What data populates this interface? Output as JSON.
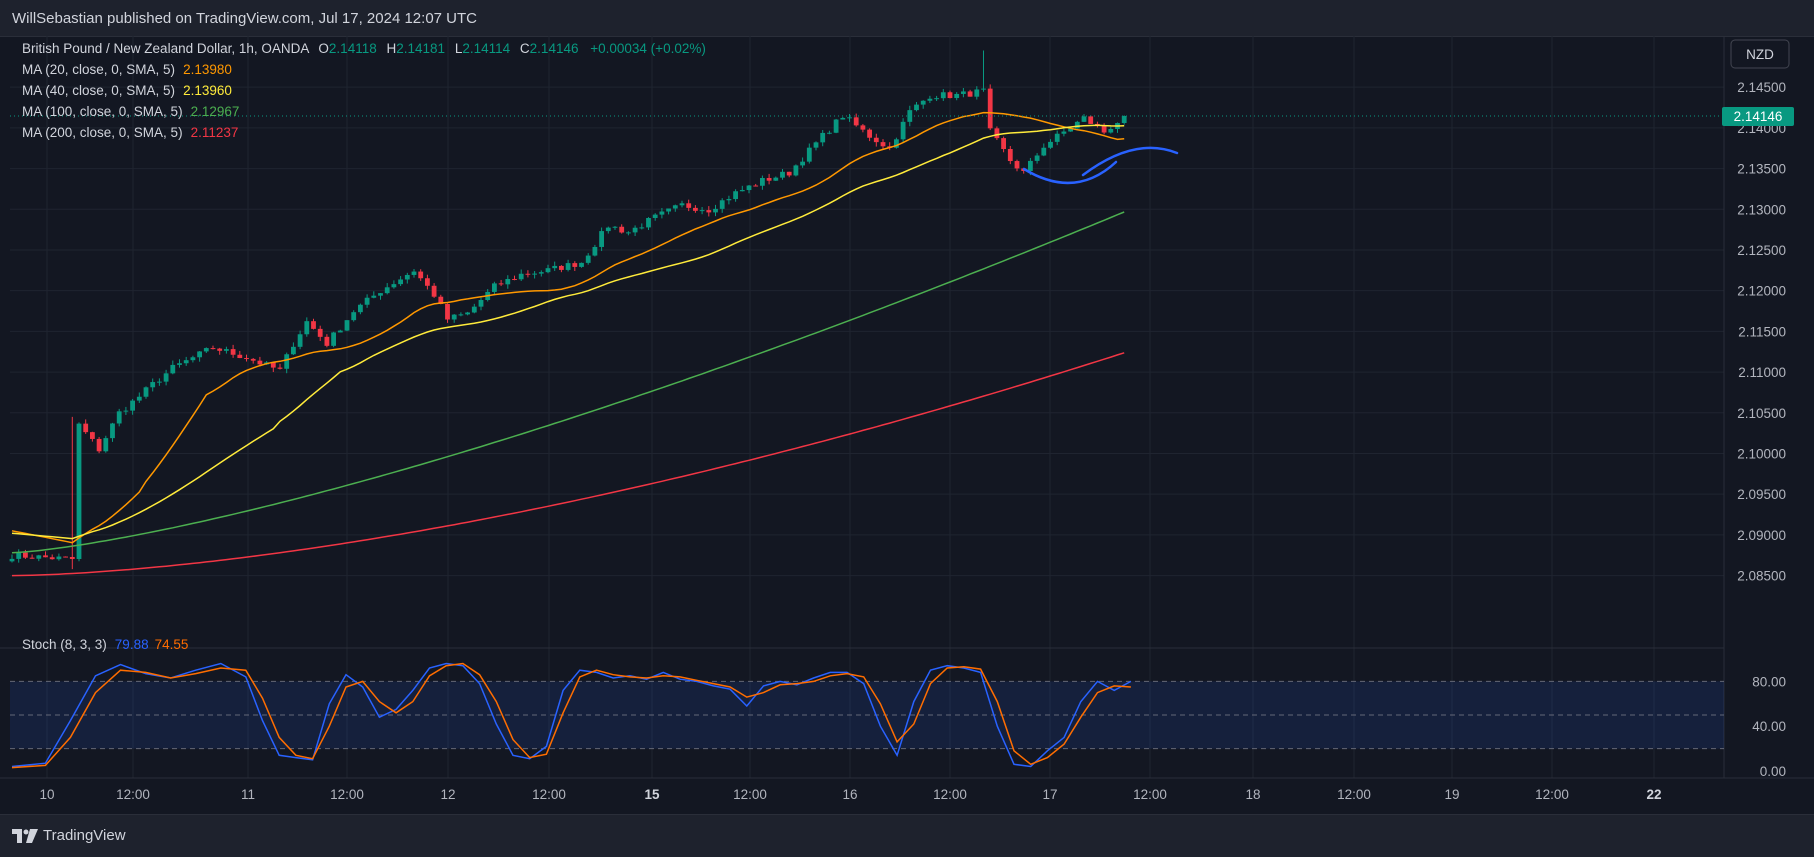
{
  "header": {
    "publisher": "WillSebastian published on TradingView.com, Jul 17, 2024 12:07 UTC"
  },
  "footer": {
    "brand": "TradingView"
  },
  "symbol": {
    "name": "British Pound / New Zealand Dollar, 1h, OANDA",
    "ohlc": [
      {
        "label": "O",
        "value": "2.14118"
      },
      {
        "label": "H",
        "value": "2.14181"
      },
      {
        "label": "L",
        "value": "2.14114"
      },
      {
        "label": "C",
        "value": "2.14146"
      }
    ],
    "change": "+0.00034 (+0.02%)"
  },
  "currency_unit": "NZD",
  "last_price": "2.14146",
  "colors": {
    "up": "#089981",
    "down": "#f23645",
    "ma20": "#ff9800",
    "ma40": "#ffeb3b",
    "ma100": "#4caf50",
    "ma200": "#f23645",
    "stoch_k": "#2962ff",
    "stoch_d": "#ff6d00",
    "annotation": "#2962ff"
  },
  "chart_data": [
    {
      "type": "candlestick",
      "x_ticks": [
        "10",
        "12:00",
        "11",
        "12:00",
        "12",
        "12:00",
        "15",
        "12:00",
        "16",
        "12:00",
        "17",
        "12:00",
        "18",
        "12:00",
        "19",
        "12:00",
        "22"
      ],
      "y_ticks": [
        "2.14500",
        "2.14000",
        "2.13500",
        "2.13000",
        "2.12500",
        "2.12000",
        "2.11500",
        "2.11000",
        "2.10500",
        "2.10000",
        "2.09500",
        "2.09000",
        "2.08500"
      ],
      "ylim": [
        2.0825,
        2.1495
      ],
      "anchors": [
        [
          0,
          2.0875
        ],
        [
          9,
          2.087
        ],
        [
          10,
          2.1035
        ],
        [
          13,
          2.1005
        ],
        [
          16,
          2.105
        ],
        [
          19,
          2.107
        ],
        [
          21,
          2.1085
        ],
        [
          24,
          2.1105
        ],
        [
          30,
          2.113
        ],
        [
          35,
          2.1118
        ],
        [
          38,
          2.1108
        ],
        [
          40,
          2.1102
        ],
        [
          42,
          2.1135
        ],
        [
          44,
          2.1162
        ],
        [
          47,
          2.1135
        ],
        [
          51,
          2.1175
        ],
        [
          55,
          2.12
        ],
        [
          60,
          2.1225
        ],
        [
          63,
          2.1195
        ],
        [
          65,
          2.1165
        ],
        [
          68,
          2.1172
        ],
        [
          72,
          2.1205
        ],
        [
          76,
          2.122
        ],
        [
          80,
          2.1225
        ],
        [
          85,
          2.1235
        ],
        [
          89,
          2.128
        ],
        [
          92,
          2.1272
        ],
        [
          96,
          2.129
        ],
        [
          100,
          2.1305
        ],
        [
          104,
          2.13
        ],
        [
          108,
          2.132
        ],
        [
          112,
          2.1335
        ],
        [
          116,
          2.1345
        ],
        [
          121,
          2.139
        ],
        [
          124,
          2.1415
        ],
        [
          128,
          2.139
        ],
        [
          131,
          2.1375
        ],
        [
          134,
          2.142
        ],
        [
          137,
          2.144
        ],
        [
          141,
          2.144
        ],
        [
          145,
          2.1445
        ],
        [
          146,
          2.1395
        ],
        [
          149,
          2.136
        ],
        [
          151,
          2.1345
        ],
        [
          154,
          2.1378
        ],
        [
          157,
          2.1395
        ],
        [
          160,
          2.1412
        ],
        [
          163,
          2.1395
        ],
        [
          166,
          2.1414
        ]
      ],
      "ma": [
        {
          "name": "MA (20, close, 0, SMA, 5)",
          "value": "2.13980",
          "color": "#ff9800"
        },
        {
          "name": "MA (40, close, 0, SMA, 5)",
          "value": "2.13960",
          "color": "#ffeb3b"
        },
        {
          "name": "MA (100, close, 0, SMA, 5)",
          "value": "2.12967",
          "color": "#4caf50"
        },
        {
          "name": "MA (200, close, 0, SMA, 5)",
          "value": "2.11237",
          "color": "#f23645"
        }
      ]
    },
    {
      "type": "line",
      "name": "Stoch (8, 3, 3)",
      "k_value": "79.88",
      "d_value": "74.55",
      "y_ticks": [
        "80.00",
        "40.00",
        "0.00"
      ],
      "ylim": [
        0,
        100
      ],
      "bands": [
        20,
        50,
        80
      ],
      "k": [
        [
          0,
          4
        ],
        [
          4,
          7
        ],
        [
          7,
          45
        ],
        [
          10,
          85
        ],
        [
          13,
          95
        ],
        [
          16,
          87
        ],
        [
          19,
          83
        ],
        [
          22,
          90
        ],
        [
          25,
          96
        ],
        [
          28,
          84
        ],
        [
          30,
          45
        ],
        [
          32,
          14
        ],
        [
          34,
          12
        ],
        [
          36,
          10
        ],
        [
          38,
          60
        ],
        [
          40,
          86
        ],
        [
          42,
          75
        ],
        [
          44,
          48
        ],
        [
          46,
          55
        ],
        [
          48,
          72
        ],
        [
          50,
          92
        ],
        [
          52,
          96
        ],
        [
          54,
          94
        ],
        [
          56,
          78
        ],
        [
          58,
          42
        ],
        [
          60,
          14
        ],
        [
          62,
          11
        ],
        [
          64,
          22
        ],
        [
          66,
          72
        ],
        [
          68,
          90
        ],
        [
          70,
          88
        ],
        [
          72,
          83
        ],
        [
          74,
          85
        ],
        [
          76,
          82
        ],
        [
          78,
          88
        ],
        [
          80,
          82
        ],
        [
          82,
          80
        ],
        [
          84,
          76
        ],
        [
          86,
          73
        ],
        [
          88,
          58
        ],
        [
          90,
          76
        ],
        [
          92,
          80
        ],
        [
          94,
          77
        ],
        [
          96,
          83
        ],
        [
          98,
          88
        ],
        [
          100,
          88
        ],
        [
          102,
          78
        ],
        [
          104,
          40
        ],
        [
          106,
          14
        ],
        [
          108,
          62
        ],
        [
          110,
          90
        ],
        [
          112,
          94
        ],
        [
          114,
          92
        ],
        [
          116,
          88
        ],
        [
          118,
          40
        ],
        [
          120,
          6
        ],
        [
          122,
          4
        ],
        [
          124,
          18
        ],
        [
          126,
          30
        ],
        [
          128,
          62
        ],
        [
          130,
          80
        ],
        [
          132,
          72
        ],
        [
          134,
          80
        ]
      ],
      "d": [
        [
          0,
          3
        ],
        [
          4,
          5
        ],
        [
          7,
          30
        ],
        [
          10,
          70
        ],
        [
          13,
          90
        ],
        [
          16,
          88
        ],
        [
          19,
          83
        ],
        [
          22,
          87
        ],
        [
          25,
          92
        ],
        [
          28,
          90
        ],
        [
          30,
          65
        ],
        [
          32,
          30
        ],
        [
          34,
          14
        ],
        [
          36,
          11
        ],
        [
          38,
          40
        ],
        [
          40,
          75
        ],
        [
          42,
          80
        ],
        [
          44,
          62
        ],
        [
          46,
          52
        ],
        [
          48,
          62
        ],
        [
          50,
          85
        ],
        [
          52,
          94
        ],
        [
          54,
          96
        ],
        [
          56,
          86
        ],
        [
          58,
          62
        ],
        [
          60,
          28
        ],
        [
          62,
          12
        ],
        [
          64,
          15
        ],
        [
          66,
          52
        ],
        [
          68,
          84
        ],
        [
          70,
          90
        ],
        [
          72,
          86
        ],
        [
          74,
          84
        ],
        [
          76,
          83
        ],
        [
          78,
          85
        ],
        [
          80,
          84
        ],
        [
          82,
          81
        ],
        [
          84,
          78
        ],
        [
          86,
          75
        ],
        [
          88,
          66
        ],
        [
          90,
          70
        ],
        [
          92,
          77
        ],
        [
          94,
          78
        ],
        [
          96,
          80
        ],
        [
          98,
          85
        ],
        [
          100,
          87
        ],
        [
          102,
          84
        ],
        [
          104,
          60
        ],
        [
          106,
          26
        ],
        [
          108,
          42
        ],
        [
          110,
          78
        ],
        [
          112,
          92
        ],
        [
          114,
          93
        ],
        [
          116,
          91
        ],
        [
          118,
          62
        ],
        [
          120,
          18
        ],
        [
          122,
          6
        ],
        [
          124,
          12
        ],
        [
          126,
          24
        ],
        [
          128,
          48
        ],
        [
          130,
          70
        ],
        [
          132,
          76
        ],
        [
          134,
          75
        ]
      ]
    }
  ]
}
